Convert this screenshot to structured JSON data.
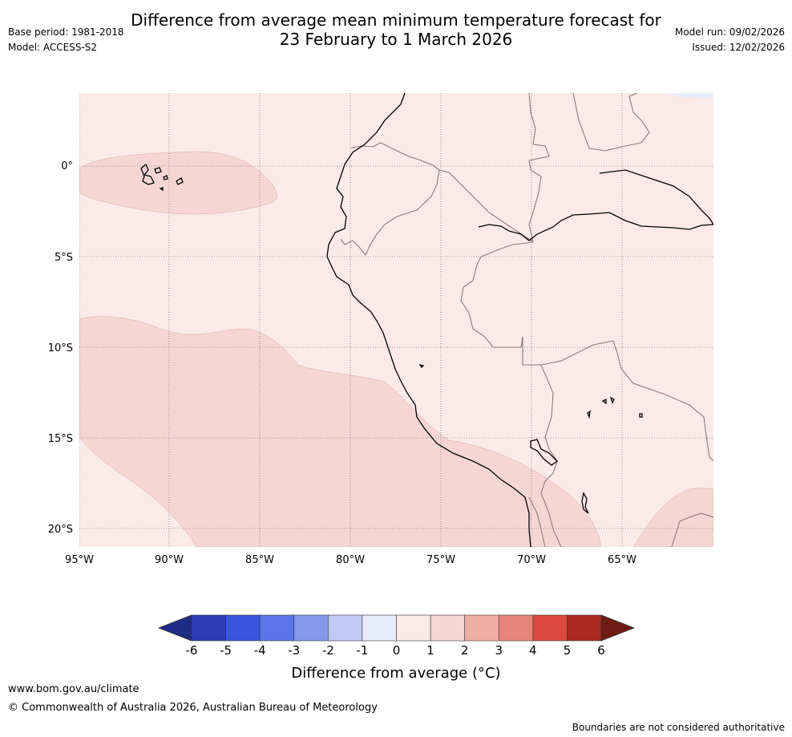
{
  "header": {
    "title_line1": "Difference from average mean minimum temperature forecast for",
    "title_line2": "23 February to 1 March 2026",
    "base_period": "Base period: 1981-2018",
    "model": "Model: ACCESS-S2",
    "model_run": "Model run: 09/02/2026",
    "issued": "Issued: 12/02/2026"
  },
  "map": {
    "lon_labels": [
      "95°W",
      "90°W",
      "85°W",
      "80°W",
      "75°W",
      "70°W",
      "65°W"
    ],
    "lat_labels": [
      "0°",
      "5°S",
      "10°S",
      "15°S",
      "20°S"
    ],
    "colors": {
      "band_0_1": "#fbeae8",
      "band_1_2": "#f5d6d3",
      "coast": "#000000",
      "border": "#8a7a7a",
      "grid": "#777777"
    }
  },
  "legend": {
    "ticks": [
      "-6",
      "-5",
      "-4",
      "-3",
      "-2",
      "-1",
      "0",
      "1",
      "2",
      "3",
      "4",
      "5",
      "6"
    ],
    "colors": [
      "#1e2b84",
      "#2a3db2",
      "#3a55df",
      "#5a76e6",
      "#8598ec",
      "#c0c8f4",
      "#e7ebfb",
      "#fbeae8",
      "#f5d6d3",
      "#eeaca5",
      "#e6857c",
      "#dc4a3f",
      "#aa2a22",
      "#6e1b15"
    ],
    "label": "Difference from average (°C)"
  },
  "footer": {
    "url": "www.bom.gov.au/climate",
    "copyright": "© Commonwealth of Australia 2026, Australian Bureau of Meteorology",
    "disclaimer": "Boundaries are not considered authoritative"
  }
}
